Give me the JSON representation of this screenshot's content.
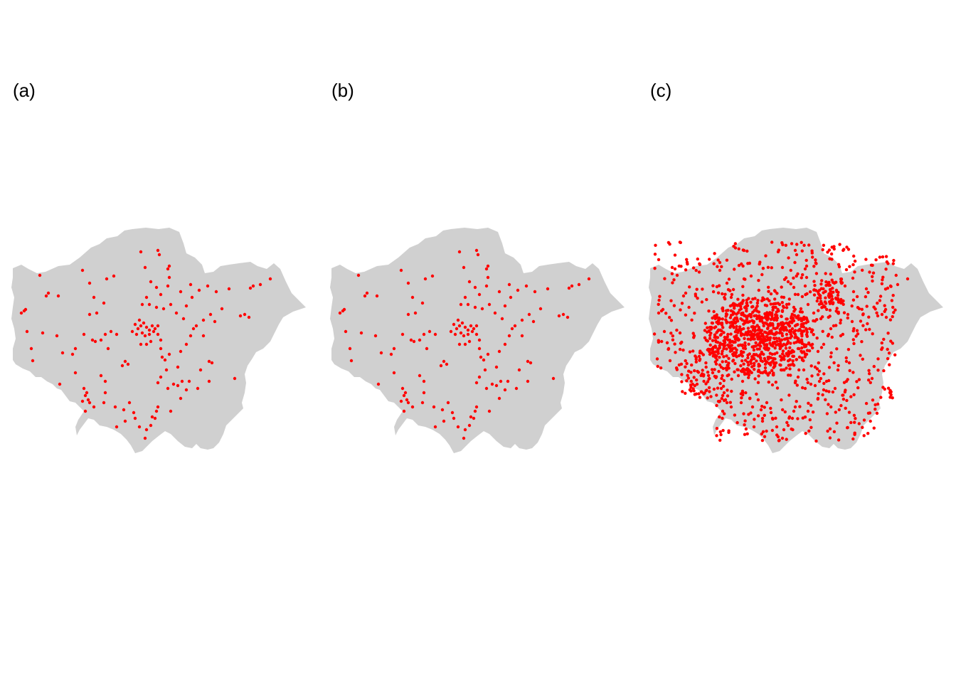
{
  "figure": {
    "panels": [
      {
        "id": "a",
        "label": "(a)"
      },
      {
        "id": "b",
        "label": "(b)"
      },
      {
        "id": "c",
        "label": "(c)"
      }
    ]
  },
  "colors": {
    "background": "#ffffff",
    "land": "#d0d0d0",
    "points": "#ff0000"
  }
}
